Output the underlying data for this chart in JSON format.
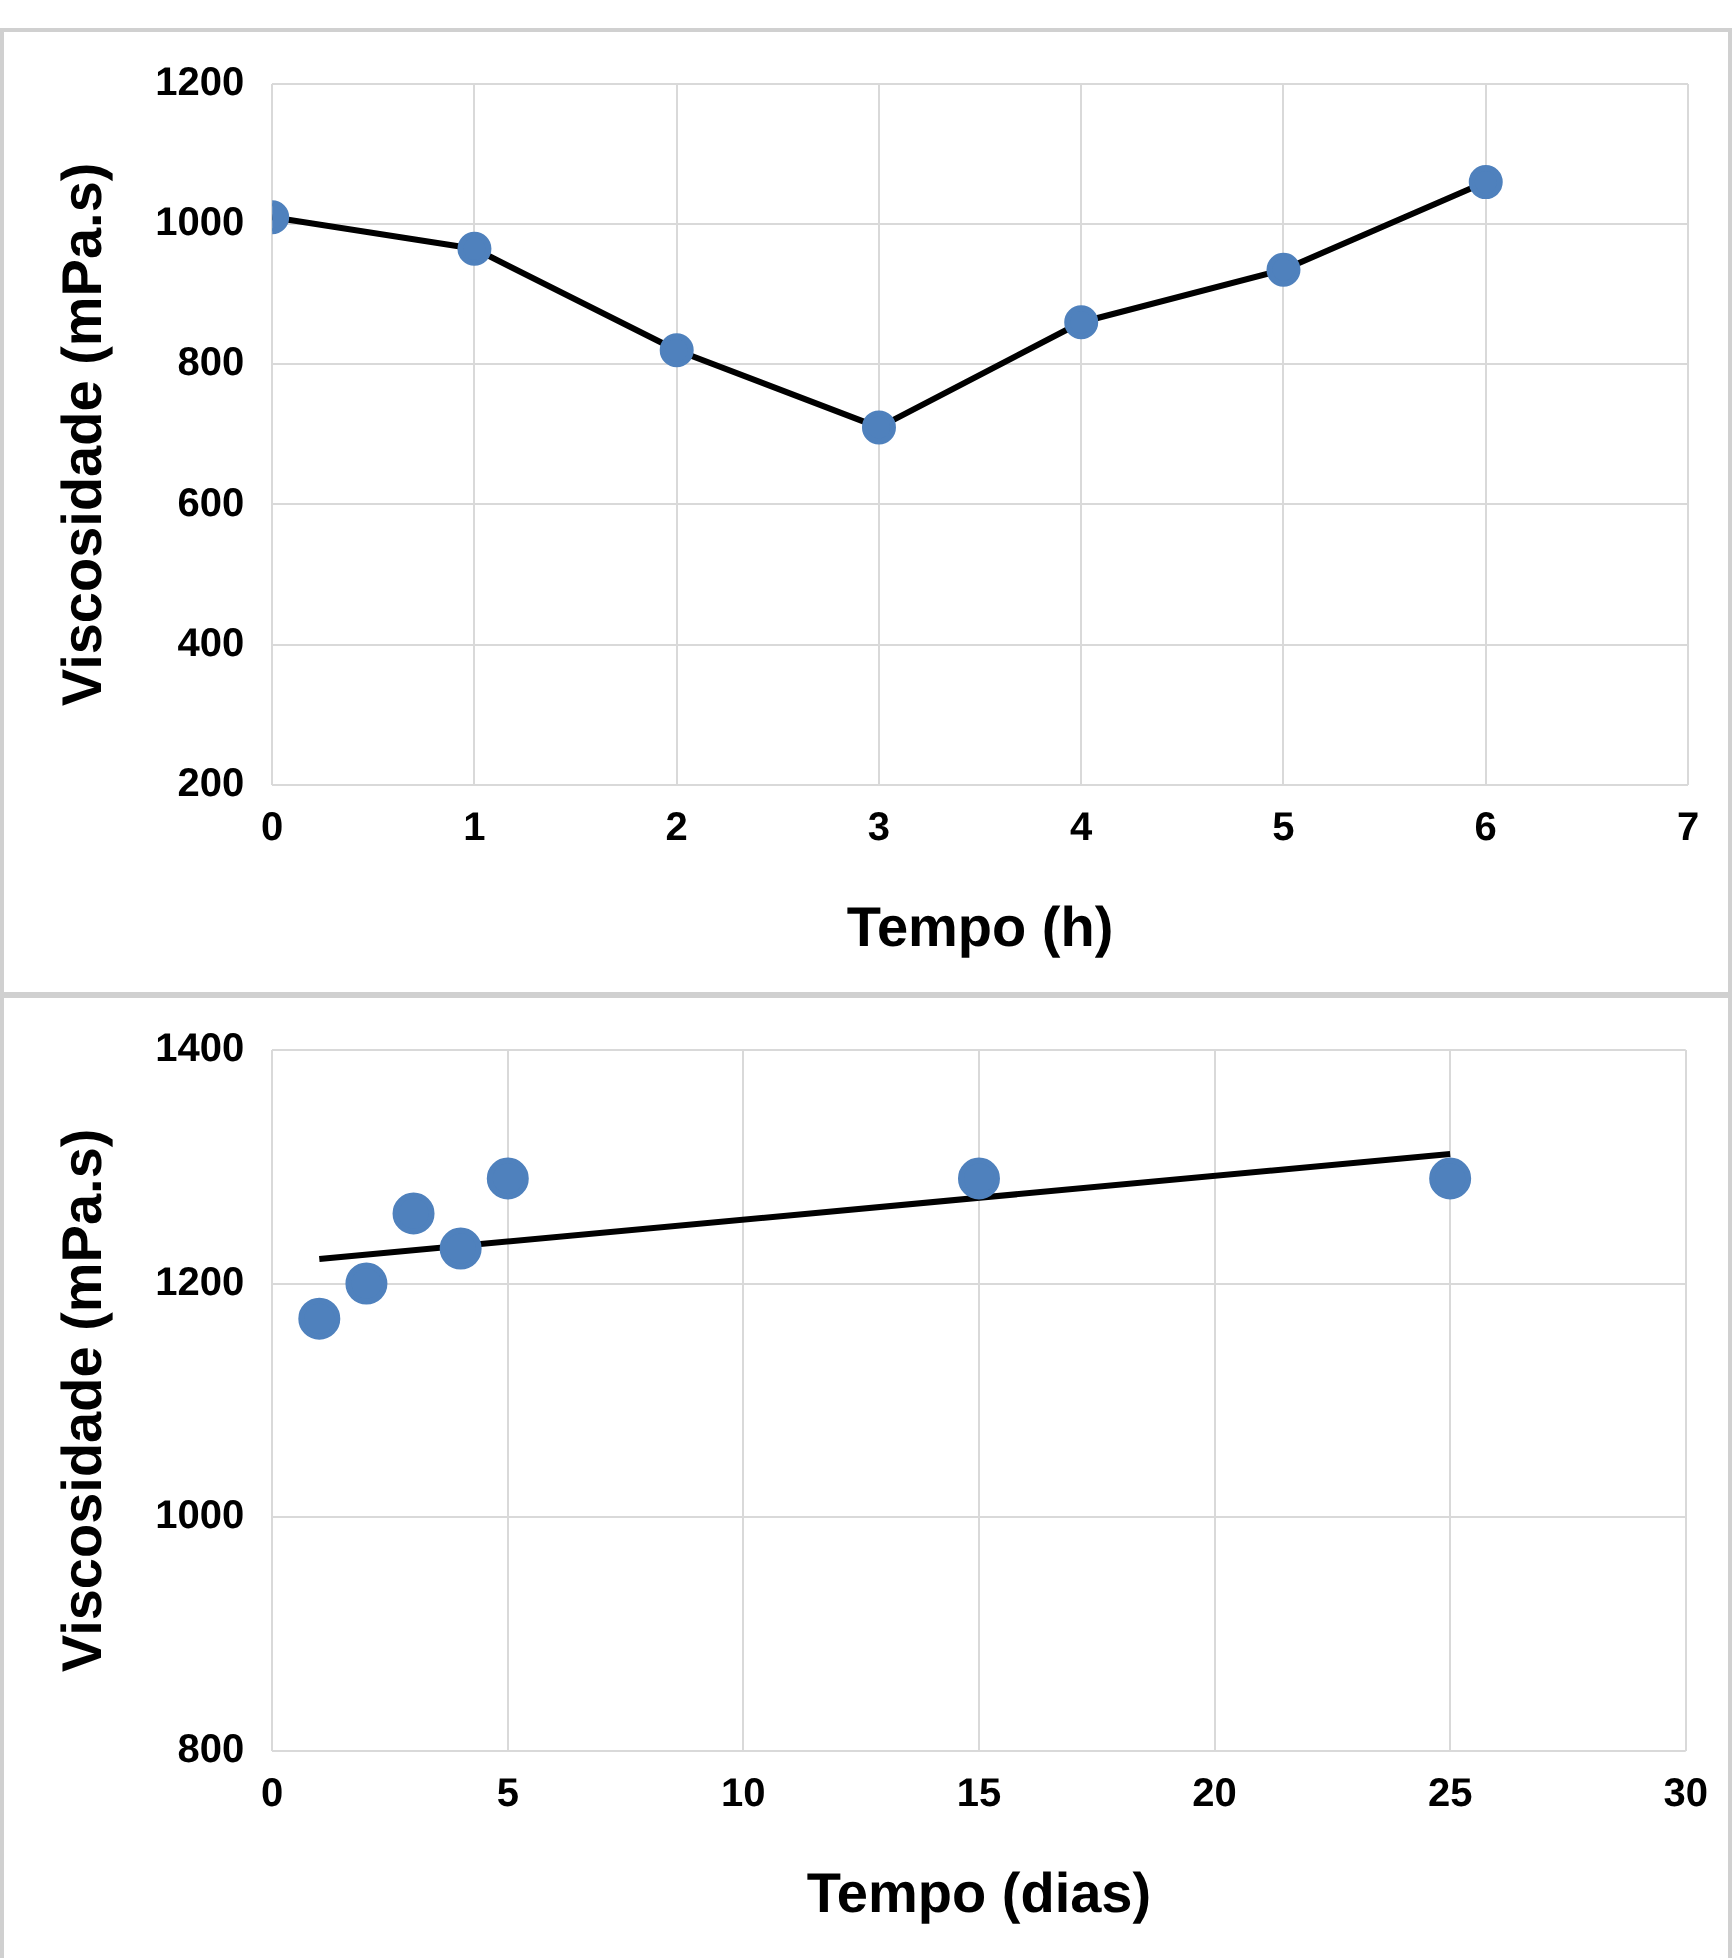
{
  "chart_data": [
    {
      "type": "line",
      "xlabel": "Tempo (h)",
      "ylabel": "Viscosidade (mPa.s)",
      "x": [
        0,
        1,
        2,
        3,
        4,
        5,
        6
      ],
      "xlim": [
        0,
        7
      ],
      "xticks": [
        0,
        1,
        2,
        3,
        4,
        5,
        6,
        7
      ],
      "ylim": [
        200,
        1200
      ],
      "yticks": [
        200,
        400,
        600,
        800,
        1000,
        1200
      ],
      "grid": true,
      "legend": false,
      "series": [
        {
          "color": "#000000",
          "colors": [
            "#4f81bd",
            "#4f81bd",
            "#4f81bd",
            "#4f81bd",
            "#4f81bd",
            "#4f81bd",
            "#4f81bd"
          ],
          "marker": "circle",
          "line_style": "solid",
          "values": [
            1010,
            965,
            820,
            710,
            860,
            935,
            1060
          ]
        }
      ]
    },
    {
      "type": "scatter",
      "xlabel": "Tempo (dias)",
      "ylabel": "Viscosidade (mPa.s)",
      "x": [
        1,
        2,
        3,
        4,
        5,
        15,
        25
      ],
      "xlim": [
        0,
        30
      ],
      "xticks": [
        0,
        5,
        10,
        15,
        20,
        25,
        30
      ],
      "ylim": [
        800,
        1400
      ],
      "yticks": [
        800,
        1000,
        1200,
        1400
      ],
      "grid": true,
      "legend": false,
      "series": [
        {
          "color": "#4f81bd",
          "marker": "circle",
          "values": [
            1170,
            1200,
            1260,
            1230,
            1290,
            1290,
            1290
          ]
        },
        {
          "type": "line",
          "color": "#000000",
          "marker": "none",
          "line_style": "solid",
          "x": [
            1,
            25
          ],
          "values": [
            1221,
            1311
          ]
        }
      ]
    }
  ]
}
